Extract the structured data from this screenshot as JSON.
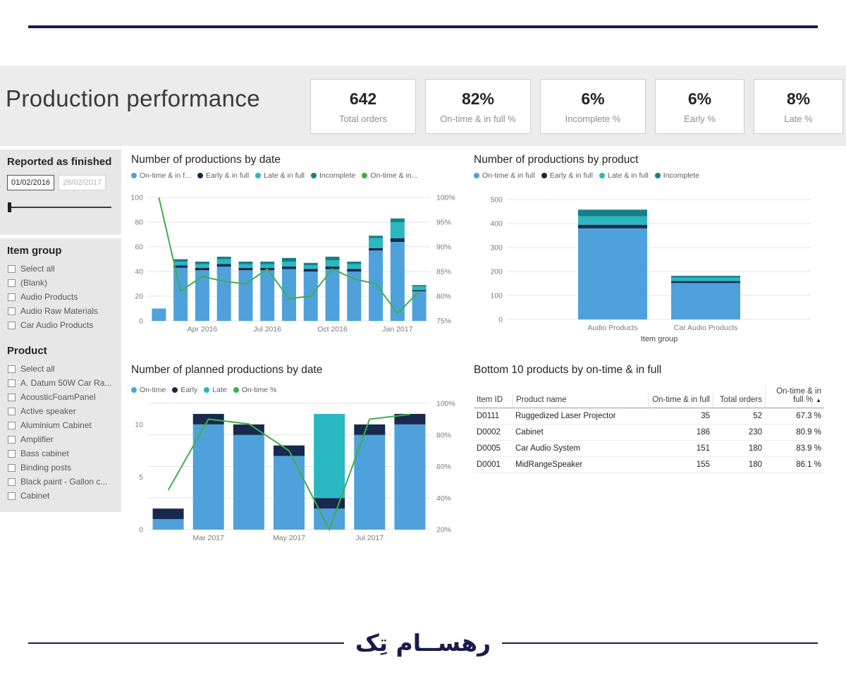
{
  "header": {
    "title": "Production performance",
    "kpis": [
      {
        "value": "642",
        "label": "Total orders"
      },
      {
        "value": "82%",
        "label": "On-time & in full %"
      },
      {
        "value": "6%",
        "label": "Incomplete %"
      },
      {
        "value": "6%",
        "label": "Early %"
      },
      {
        "value": "8%",
        "label": "Late %"
      }
    ]
  },
  "sidebar": {
    "date_filter": {
      "title": "Reported as finished",
      "start": "01/02/2016",
      "end": "28/02/2017"
    },
    "item_group": {
      "title": "Item group",
      "items": [
        "Select all",
        "(Blank)",
        "Audio Products",
        "Audio Raw Materials",
        "Car Audio Products"
      ]
    },
    "product": {
      "title": "Product",
      "items": [
        "Select all",
        "A. Datum 50W Car Ra...",
        "AcousticFoamPanel",
        "Active speaker",
        "Aluminium Cabinet",
        "Amplifier",
        "Bass cabinet",
        "Binding posts",
        "Black paint - Gallon c...",
        "Cabinet"
      ]
    }
  },
  "colors": {
    "blue": "#4FA1DB",
    "navy": "#17294E",
    "teal": "#29B8C2",
    "darkteal": "#177F86",
    "green": "#3EB049",
    "rule_navy": "#1B1B4D"
  },
  "chart_data": [
    {
      "id": "productions_by_date",
      "type": "bar",
      "stacked": true,
      "title": "Number of productions by date",
      "categories": [
        "Feb 2016",
        "Mar 2016",
        "Apr 2016",
        "May 2016",
        "Jun 2016",
        "Jul 2016",
        "Aug 2016",
        "Sep 2016",
        "Oct 2016",
        "Nov 2016",
        "Dec 2016",
        "Jan 2017",
        "Feb 2017"
      ],
      "x_tick_labels": {
        "2": "Apr 2016",
        "5": "Jul 2016",
        "8": "Oct 2016",
        "11": "Jan 2017"
      },
      "series": [
        {
          "name": "On-time & in f...",
          "color_key": "blue",
          "values": [
            10,
            43,
            41,
            44,
            41,
            41,
            42,
            40,
            42,
            40,
            57,
            64,
            24
          ]
        },
        {
          "name": "Early & in full",
          "color_key": "navy",
          "values": [
            0,
            2,
            2,
            2,
            2,
            2,
            2,
            2,
            2,
            2,
            2,
            3,
            1
          ]
        },
        {
          "name": "Late & in full",
          "color_key": "teal",
          "values": [
            0,
            3,
            3,
            4,
            3,
            3,
            4,
            3,
            5,
            4,
            8,
            13,
            3
          ]
        },
        {
          "name": "Incomplete",
          "color_key": "darkteal",
          "values": [
            0,
            2,
            2,
            2,
            2,
            2,
            3,
            2,
            3,
            2,
            2,
            3,
            1
          ]
        }
      ],
      "line_series": {
        "name": "On-time & in...",
        "color_key": "green",
        "values": [
          100,
          81,
          84,
          83,
          82.5,
          85.5,
          79.5,
          80,
          85.5,
          83.5,
          82.5,
          76.5,
          81
        ]
      },
      "ylim": [
        0,
        100
      ],
      "yticks": [
        0,
        20,
        40,
        60,
        80,
        100
      ],
      "y2lim": [
        75,
        100
      ],
      "y2ticks": [
        "75%",
        "80%",
        "85%",
        "90%",
        "95%",
        "100%"
      ],
      "grid": true,
      "legend_position": "top"
    },
    {
      "id": "productions_by_product",
      "type": "bar",
      "stacked": true,
      "title": "Number of productions by product",
      "categories": [
        "Audio Products",
        "Car Audio Products"
      ],
      "xlabel": "Item group",
      "series": [
        {
          "name": "On-time & in full",
          "color_key": "blue",
          "values": [
            380,
            152
          ]
        },
        {
          "name": "Early & in full",
          "color_key": "navy",
          "values": [
            15,
            8
          ]
        },
        {
          "name": "Late & in full",
          "color_key": "teal",
          "values": [
            35,
            15
          ]
        },
        {
          "name": "Incomplete",
          "color_key": "darkteal",
          "values": [
            28,
            7
          ]
        }
      ],
      "ylim": [
        0,
        500
      ],
      "yticks": [
        0,
        100,
        200,
        300,
        400,
        500
      ],
      "grid": true,
      "legend_position": "top"
    },
    {
      "id": "planned_productions_by_date",
      "type": "bar",
      "stacked": true,
      "title": "Number of planned productions by date",
      "categories": [
        "Feb 2017",
        "Mar 2017",
        "Apr 2017",
        "May 2017",
        "Jun 2017",
        "Jul 2017",
        "Aug 2017"
      ],
      "x_tick_labels": {
        "1": "Mar 2017",
        "3": "May 2017",
        "5": "Jul 2017"
      },
      "series": [
        {
          "name": "On-time",
          "color_key": "blue",
          "values": [
            1,
            10,
            9,
            7,
            2,
            9,
            10
          ]
        },
        {
          "name": "Early",
          "color_key": "navy",
          "values": [
            1,
            1,
            1,
            1,
            1,
            1,
            1
          ]
        },
        {
          "name": "Late",
          "color_key": "teal",
          "values": [
            0,
            0,
            0,
            0,
            8,
            0,
            0
          ]
        }
      ],
      "line_series": {
        "name": "On-time %",
        "color_key": "green",
        "values": [
          45,
          90,
          87,
          70,
          20,
          90,
          93
        ]
      },
      "ylim": [
        0,
        12
      ],
      "yticks": [
        0,
        5,
        10
      ],
      "y2lim": [
        20,
        100
      ],
      "y2ticks": [
        "20%",
        "40%",
        "60%",
        "80%",
        "100%"
      ],
      "grid": true,
      "legend_position": "top"
    },
    {
      "id": "bottom10",
      "type": "table",
      "title": "Bottom 10 products by on-time & in full",
      "columns": [
        "Item ID",
        "Product name",
        "On-time & in full",
        "Total orders",
        "On-time & in full %"
      ],
      "sort_column": "On-time & in full %",
      "sort_icon": "▲",
      "rows": [
        [
          "D0111",
          "Ruggedized Laser Projector",
          "35",
          "52",
          "67.3 %"
        ],
        [
          "D0002",
          "Cabinet",
          "186",
          "230",
          "80.9 %"
        ],
        [
          "D0005",
          "Car Audio System",
          "151",
          "180",
          "83.9 %"
        ],
        [
          "D0001",
          "MidRangeSpeaker",
          "155",
          "180",
          "86.1 %"
        ]
      ]
    }
  ],
  "footer": {
    "logo_text": "رهســام تِک"
  }
}
